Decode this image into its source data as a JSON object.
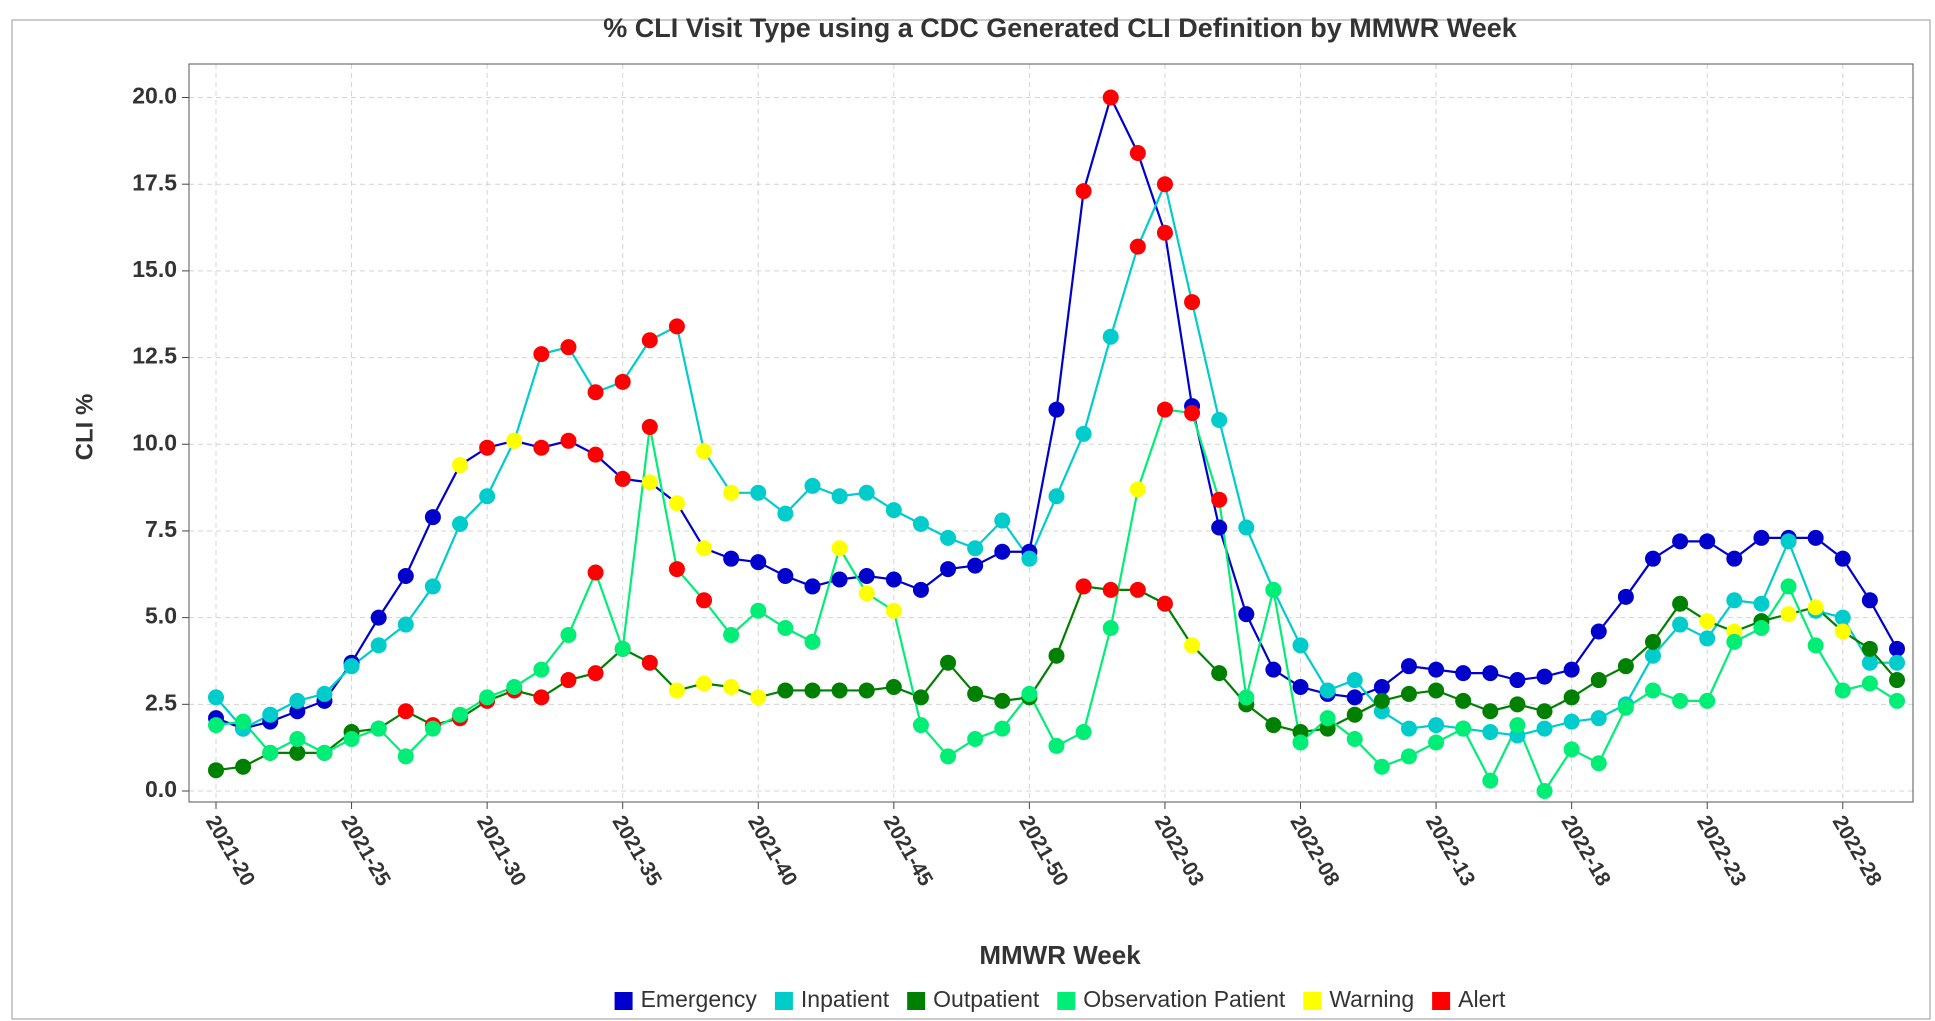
{
  "chart_data": {
    "type": "line",
    "title": "% CLI Visit Type using a CDC Generated CLI Definition by MMWR Week",
    "x_label": "MMWR Week",
    "y_label": "CLI %",
    "categories": [
      "2021-20",
      null,
      null,
      null,
      null,
      "2021-25",
      null,
      null,
      null,
      null,
      "2021-30",
      null,
      null,
      null,
      null,
      "2021-35",
      null,
      null,
      null,
      null,
      "2021-40",
      null,
      null,
      null,
      null,
      "2021-45",
      null,
      null,
      null,
      null,
      "2021-50",
      null,
      null,
      null,
      null,
      "2022-03",
      null,
      null,
      null,
      null,
      "2022-08",
      null,
      null,
      null,
      null,
      "2022-13",
      null,
      null,
      null,
      null,
      "2022-18",
      null,
      null,
      null,
      null,
      "2022-23",
      null,
      null,
      null,
      null,
      "2022-28",
      null,
      null
    ],
    "ylim": [
      0,
      20
    ],
    "yticks": [
      {
        "value": 0,
        "label": "0.0"
      },
      2.5,
      {
        "value": 5,
        "label": "5.0"
      },
      7.5,
      {
        "value": 10,
        "label": "10.0"
      },
      12.5,
      {
        "value": 15,
        "label": "15.0"
      },
      17.5,
      {
        "value": 20,
        "label": "20.0"
      }
    ],
    "grid": true,
    "series": [
      {
        "name": "Emergency",
        "color": "#0000cc",
        "values": [
          2.1,
          1.8,
          2.0,
          2.3,
          2.6,
          3.7,
          5.0,
          6.2,
          7.9,
          9.4,
          9.9,
          10.1,
          9.9,
          10.1,
          9.7,
          9.0,
          8.9,
          8.3,
          7.0,
          6.7,
          6.6,
          6.2,
          5.9,
          6.1,
          6.2,
          6.1,
          5.8,
          6.4,
          6.5,
          6.9,
          6.9,
          11.0,
          17.3,
          20.0,
          18.4,
          16.1,
          11.1,
          7.6,
          5.1,
          3.5,
          3.0,
          2.8,
          2.7,
          3.0,
          3.6,
          3.5,
          3.4,
          3.4,
          3.2,
          3.3,
          3.5,
          4.6,
          5.6,
          6.7,
          7.2,
          7.2,
          6.7,
          7.3,
          7.3,
          7.3,
          6.7,
          5.5,
          4.1
        ],
        "marker_colors": [
          null,
          null,
          null,
          null,
          null,
          null,
          null,
          null,
          null,
          "#ffff00",
          "#ff0000",
          "#ffff00",
          "#ff0000",
          "#ff0000",
          "#ff0000",
          "#ff0000",
          "#ffff00",
          "#ffff00",
          "#ffff00",
          null,
          null,
          null,
          null,
          null,
          null,
          null,
          null,
          null,
          null,
          null,
          null,
          null,
          "#ff0000",
          "#ff0000",
          "#ff0000",
          "#ff0000",
          null,
          null,
          null,
          null,
          null,
          null,
          null,
          null,
          null,
          null,
          null,
          null,
          null,
          null,
          null,
          null,
          null,
          null,
          null,
          null,
          null,
          null,
          null,
          null,
          null,
          null,
          null
        ]
      },
      {
        "name": "Inpatient",
        "color": "#00cccc",
        "values": [
          2.7,
          1.8,
          2.2,
          2.6,
          2.8,
          3.6,
          4.2,
          4.8,
          5.9,
          7.7,
          8.5,
          10.1,
          12.6,
          12.8,
          11.5,
          11.8,
          13.0,
          13.4,
          9.8,
          8.6,
          8.6,
          8.0,
          8.8,
          8.5,
          8.6,
          8.1,
          7.7,
          7.3,
          7.0,
          7.8,
          6.7,
          8.5,
          10.3,
          13.1,
          15.7,
          17.5,
          14.1,
          10.7,
          7.6,
          5.8,
          4.2,
          2.9,
          3.2,
          2.3,
          1.8,
          1.9,
          1.8,
          1.7,
          1.6,
          1.8,
          2.0,
          2.1,
          2.5,
          3.9,
          4.8,
          4.4,
          5.5,
          5.4,
          7.2,
          5.2,
          5.0,
          3.7,
          3.7
        ],
        "marker_colors": [
          null,
          null,
          null,
          null,
          null,
          null,
          null,
          null,
          null,
          null,
          null,
          "#ffff00",
          "#ff0000",
          "#ff0000",
          "#ff0000",
          "#ff0000",
          "#ff0000",
          "#ff0000",
          "#ffff00",
          "#ffff00",
          null,
          null,
          null,
          null,
          null,
          null,
          null,
          null,
          null,
          null,
          null,
          null,
          null,
          null,
          "#ff0000",
          "#ff0000",
          "#ff0000",
          null,
          null,
          null,
          null,
          null,
          null,
          null,
          null,
          null,
          null,
          null,
          null,
          null,
          null,
          null,
          null,
          null,
          null,
          null,
          null,
          null,
          null,
          null,
          null,
          null,
          null
        ]
      },
      {
        "name": "Outpatient",
        "color": "#008000",
        "values": [
          0.6,
          0.7,
          1.1,
          1.1,
          1.1,
          1.7,
          1.8,
          2.3,
          1.9,
          2.1,
          2.6,
          2.9,
          2.7,
          3.2,
          3.4,
          4.1,
          3.7,
          2.9,
          3.1,
          3.0,
          2.7,
          2.9,
          2.9,
          2.9,
          2.9,
          3.0,
          2.7,
          3.7,
          2.8,
          2.6,
          2.7,
          3.9,
          5.9,
          5.8,
          5.8,
          5.4,
          4.2,
          3.4,
          2.5,
          1.9,
          1.7,
          1.8,
          2.2,
          2.6,
          2.8,
          2.9,
          2.6,
          2.3,
          2.5,
          2.3,
          2.7,
          3.2,
          3.6,
          4.3,
          5.4,
          4.9,
          4.6,
          4.9,
          5.1,
          5.3,
          4.6,
          4.1,
          3.2
        ],
        "marker_colors": [
          null,
          null,
          null,
          null,
          null,
          null,
          null,
          "#ff0000",
          "#ff0000",
          "#ff0000",
          "#ff0000",
          "#ff0000",
          "#ff0000",
          "#ff0000",
          "#ff0000",
          "#ff0000",
          "#ff0000",
          "#ffff00",
          "#ffff00",
          "#ffff00",
          "#ffff00",
          null,
          null,
          null,
          null,
          null,
          null,
          null,
          null,
          null,
          null,
          null,
          "#ff0000",
          "#ff0000",
          "#ff0000",
          "#ff0000",
          "#ffff00",
          null,
          null,
          null,
          null,
          null,
          null,
          null,
          null,
          null,
          null,
          null,
          null,
          null,
          null,
          null,
          null,
          null,
          null,
          "#ffff00",
          "#ffff00",
          null,
          "#ffff00",
          "#ffff00",
          "#ffff00",
          null,
          null
        ]
      },
      {
        "name": "Observation Patient",
        "color": "#00ee76",
        "values": [
          1.9,
          2.0,
          1.1,
          1.5,
          1.1,
          1.5,
          1.8,
          1.0,
          1.8,
          2.2,
          2.7,
          3.0,
          3.5,
          4.5,
          6.3,
          4.1,
          10.5,
          6.4,
          5.5,
          4.5,
          5.2,
          4.7,
          4.3,
          7.0,
          5.7,
          5.2,
          1.9,
          1.0,
          1.5,
          1.8,
          2.8,
          1.3,
          1.7,
          4.7,
          8.7,
          11.0,
          10.9,
          8.4,
          2.7,
          5.8,
          1.4,
          2.1,
          1.5,
          0.7,
          1.0,
          1.4,
          1.8,
          0.3,
          1.9,
          0.0,
          1.2,
          0.8,
          2.4,
          2.9,
          2.6,
          2.6,
          4.3,
          4.7,
          5.9,
          4.2,
          2.9,
          3.1,
          2.6
        ],
        "marker_colors": [
          null,
          null,
          null,
          null,
          null,
          null,
          null,
          null,
          null,
          null,
          null,
          null,
          null,
          null,
          "#ff0000",
          null,
          "#ff0000",
          "#ff0000",
          "#ff0000",
          null,
          null,
          null,
          null,
          "#ffff00",
          "#ffff00",
          "#ffff00",
          null,
          null,
          null,
          null,
          null,
          null,
          null,
          null,
          "#ffff00",
          "#ff0000",
          "#ff0000",
          "#ff0000",
          null,
          null,
          null,
          null,
          null,
          null,
          null,
          null,
          null,
          null,
          null,
          null,
          null,
          null,
          null,
          null,
          null,
          null,
          null,
          null,
          null,
          null,
          null,
          null,
          null
        ]
      }
    ],
    "flags": [
      {
        "name": "Warning",
        "color": "#ffff00"
      },
      {
        "name": "Alert",
        "color": "#ff0000"
      }
    ]
  }
}
